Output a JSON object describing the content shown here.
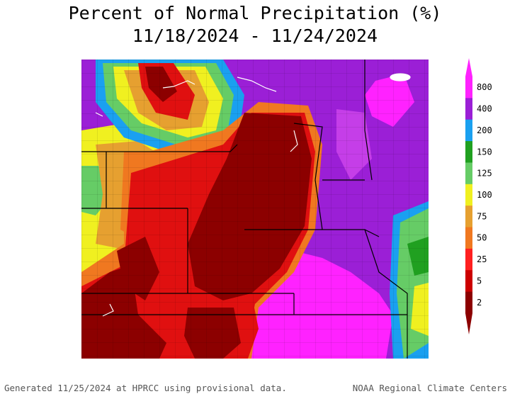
{
  "title": {
    "line1": "Percent of Normal Precipitation (%)",
    "line2": "11/18/2024 - 11/24/2024"
  },
  "legend": {
    "labels": [
      "800",
      "400",
      "200",
      "150",
      "125",
      "100",
      "75",
      "50",
      "25",
      "5",
      "2"
    ],
    "colors": [
      "#ff22ff",
      "#9b1fd6",
      "#1aa0f0",
      "#20a020",
      "#66cc66",
      "#f0f020",
      "#e6a030",
      "#f07820",
      "#ff2020",
      "#cc0000",
      "#8c0000"
    ]
  },
  "map_colors": {
    "dark_red": "#8c0000",
    "red": "#e01010",
    "orange": "#f07820",
    "tan": "#e6a030",
    "yellow": "#f0f020",
    "light_green": "#66cc66",
    "green": "#20a020",
    "blue": "#1aa0f0",
    "purple": "#9b1fd6",
    "magenta": "#ff22ff"
  },
  "footer": {
    "left": "Generated 11/25/2024 at HPRCC using provisional data.",
    "right": "NOAA Regional Climate Centers"
  }
}
